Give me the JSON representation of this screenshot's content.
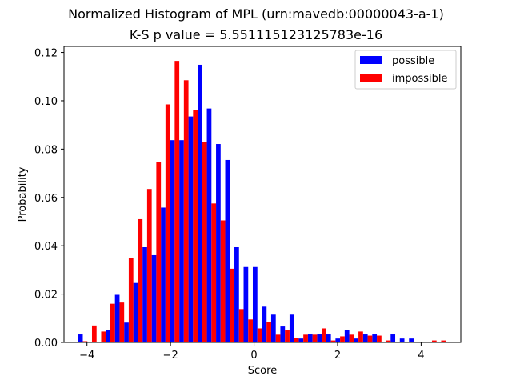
{
  "chart_data": {
    "type": "bar",
    "title": "Normalized Histogram of MPL (urn:mavedb:00000043-a-1)",
    "subtitle": "K-S p value = 5.551115123125783e-16",
    "xlabel": "Score",
    "ylabel": "Probability",
    "xlim": [
      -4.55,
      4.95
    ],
    "ylim": [
      0,
      0.1225
    ],
    "xticks": [
      -4,
      -2,
      0,
      2,
      4
    ],
    "xtick_labels": [
      "−4",
      "−2",
      "0",
      "2",
      "4"
    ],
    "yticks": [
      0.0,
      0.02,
      0.04,
      0.06,
      0.08,
      0.1,
      0.12
    ],
    "ytick_labels": [
      "0.00",
      "0.02",
      "0.04",
      "0.06",
      "0.08",
      "0.10",
      "0.12"
    ],
    "grid": false,
    "legend_position": "top-right",
    "bin_width": 0.22,
    "bin_centers": [
      -4.1,
      -3.88,
      -3.66,
      -3.44,
      -3.22,
      -3.0,
      -2.78,
      -2.56,
      -2.34,
      -2.12,
      -1.9,
      -1.68,
      -1.46,
      -1.24,
      -1.02,
      -0.8,
      -0.58,
      -0.36,
      -0.14,
      0.08,
      0.3,
      0.52,
      0.74,
      0.96,
      1.18,
      1.4,
      1.62,
      1.84,
      2.06,
      2.28,
      2.5,
      2.72,
      2.94,
      3.16,
      3.38,
      3.6,
      3.82,
      4.04,
      4.26,
      4.48
    ],
    "series": [
      {
        "name": "possible",
        "color": "#0000ff",
        "values": [
          0.0033,
          0.0,
          0.0,
          0.005,
          0.0197,
          0.0082,
          0.0246,
          0.0394,
          0.0361,
          0.0558,
          0.0837,
          0.0837,
          0.0935,
          0.1149,
          0.0968,
          0.0821,
          0.0755,
          0.0394,
          0.0312,
          0.0312,
          0.0148,
          0.0115,
          0.0066,
          0.0115,
          0.0016,
          0.0033,
          0.0033,
          0.0033,
          0.0016,
          0.005,
          0.0016,
          0.0033,
          0.0033,
          0.0,
          0.0033,
          0.0016,
          0.0016,
          0.0,
          0.0,
          0.0
        ]
      },
      {
        "name": "impossible",
        "color": "#ff0000",
        "values": [
          0.0005,
          0.007,
          0.0045,
          0.016,
          0.0165,
          0.035,
          0.051,
          0.0635,
          0.0745,
          0.0985,
          0.1165,
          0.1085,
          0.0962,
          0.083,
          0.0575,
          0.0505,
          0.0305,
          0.0138,
          0.0095,
          0.0058,
          0.0085,
          0.0032,
          0.0052,
          0.0018,
          0.0032,
          0.0032,
          0.0058,
          0.0008,
          0.0025,
          0.0032,
          0.0045,
          0.0028,
          0.0028,
          0.0008,
          0.0,
          0.0,
          0.0,
          0.0,
          0.0008,
          0.0008
        ]
      }
    ]
  }
}
